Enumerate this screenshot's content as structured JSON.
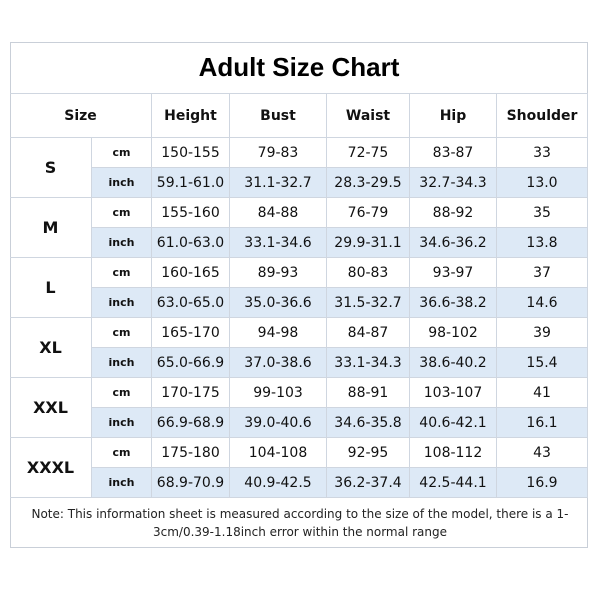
{
  "title": "Adult Size Chart",
  "header": [
    "Size",
    "Height",
    "Bust",
    "Waist",
    "Hip",
    "Shoulder"
  ],
  "sizes": [
    {
      "size": "S",
      "rows": [
        {
          "unit": "cm",
          "values": [
            "150-155",
            "79-83",
            "72-75",
            "83-87",
            "33"
          ]
        },
        {
          "unit": "inch",
          "values": [
            "59.1-61.0",
            "31.1-32.7",
            "28.3-29.5",
            "32.7-34.3",
            "13.0"
          ]
        }
      ]
    },
    {
      "size": "M",
      "rows": [
        {
          "unit": "cm",
          "values": [
            "155-160",
            "84-88",
            "76-79",
            "88-92",
            "35"
          ]
        },
        {
          "unit": "inch",
          "values": [
            "61.0-63.0",
            "33.1-34.6",
            "29.9-31.1",
            "34.6-36.2",
            "13.8"
          ]
        }
      ]
    },
    {
      "size": "L",
      "rows": [
        {
          "unit": "cm",
          "values": [
            "160-165",
            "89-93",
            "80-83",
            "93-97",
            "37"
          ]
        },
        {
          "unit": "inch",
          "values": [
            "63.0-65.0",
            "35.0-36.6",
            "31.5-32.7",
            "36.6-38.2",
            "14.6"
          ]
        }
      ]
    },
    {
      "size": "XL",
      "rows": [
        {
          "unit": "cm",
          "values": [
            "165-170",
            "94-98",
            "84-87",
            "98-102",
            "39"
          ]
        },
        {
          "unit": "inch",
          "values": [
            "65.0-66.9",
            "37.0-38.6",
            "33.1-34.3",
            "38.6-40.2",
            "15.4"
          ]
        }
      ]
    },
    {
      "size": "XXL",
      "rows": [
        {
          "unit": "cm",
          "values": [
            "170-175",
            "99-103",
            "88-91",
            "103-107",
            "41"
          ]
        },
        {
          "unit": "inch",
          "values": [
            "66.9-68.9",
            "39.0-40.6",
            "34.6-35.8",
            "40.6-42.1",
            "16.1"
          ]
        }
      ]
    },
    {
      "size": "XXXL",
      "rows": [
        {
          "unit": "cm",
          "values": [
            "175-180",
            "104-108",
            "92-95",
            "108-112",
            "43"
          ]
        },
        {
          "unit": "inch",
          "values": [
            "68.9-70.9",
            "40.9-42.5",
            "36.2-37.4",
            "42.5-44.1",
            "16.9"
          ]
        }
      ]
    }
  ],
  "note": "Note: This information sheet is measured according to the size of the model, there is a 1-3cm/0.39-1.18inch error within the normal range"
}
